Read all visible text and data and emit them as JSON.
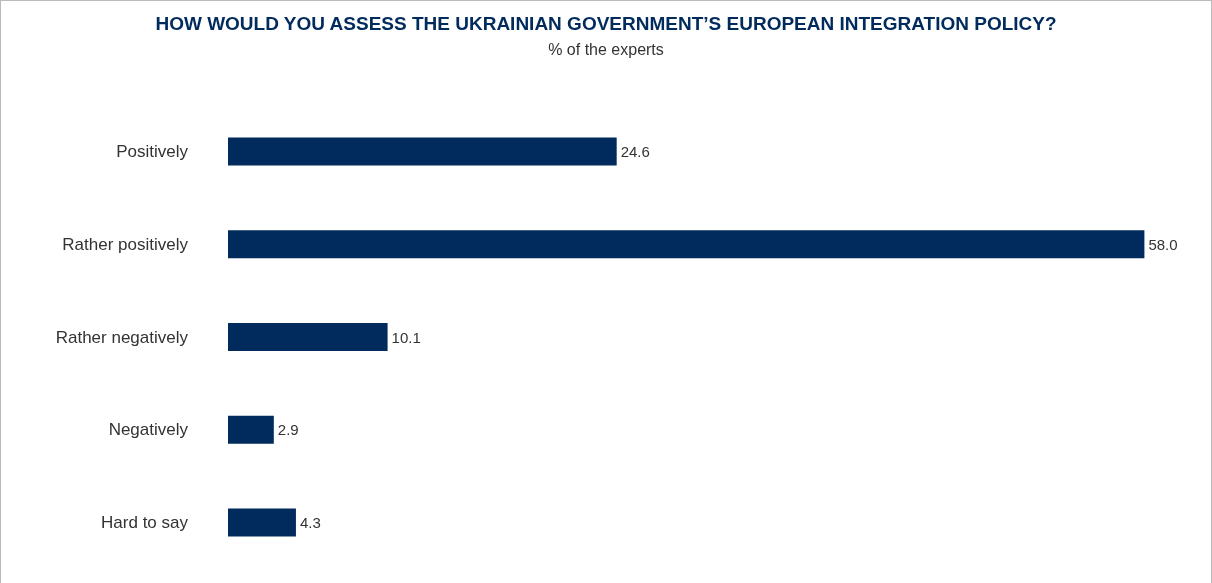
{
  "chart_data": {
    "type": "bar",
    "orientation": "horizontal",
    "title": "HOW WOULD YOU ASSESS THE UKRAINIAN GOVERNMENT’S EUROPEAN INTEGRATION POLICY?",
    "subtitle": "% of the experts",
    "categories": [
      "Positively",
      "Rather positively",
      "Rather negatively",
      "Negatively",
      "Hard to say"
    ],
    "values": [
      24.6,
      58.0,
      10.1,
      2.9,
      4.3
    ],
    "value_labels": [
      "24.6",
      "58.0",
      "10.1",
      "2.9",
      "4.3"
    ],
    "color": "#002b5c"
  }
}
